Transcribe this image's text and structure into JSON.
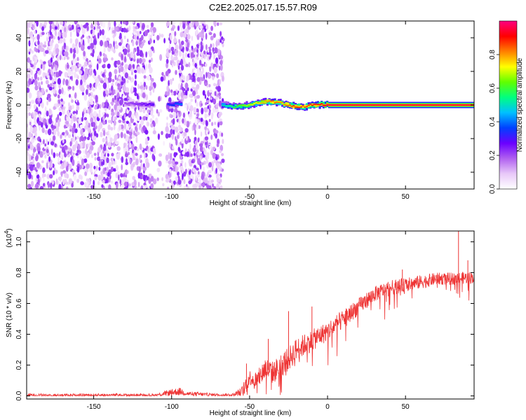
{
  "title": "C2E2.2025.017.15.57.R09",
  "chart_data": [
    {
      "type": "heatmap",
      "xlabel": "Height of straight line (km)",
      "ylabel": "Frequency (Hz)",
      "xlim": [
        -193,
        94
      ],
      "ylim": [
        -50,
        50
      ],
      "xticks": [
        -150,
        -100,
        -50,
        0,
        50
      ],
      "yticks": [
        -40,
        -20,
        0,
        20,
        40
      ],
      "colorbar": {
        "label": "Normalized spectral amplitude",
        "range": [
          0.0,
          1.0
        ],
        "ticks": [
          0.0,
          0.2,
          0.4,
          0.6,
          0.8
        ],
        "colors": [
          "#ffffff",
          "#e8c8f8",
          "#b060f0",
          "#6a00ff",
          "#0040ff",
          "#00c0ff",
          "#00ff80",
          "#60ff00",
          "#ffff00",
          "#ff8000",
          "#ff0000",
          "#ff0080"
        ]
      },
      "noise_region": {
        "x": [
          -193,
          -67
        ],
        "y": [
          -50,
          50
        ],
        "amplitude": [
          0.05,
          0.25
        ]
      },
      "gap_region": {
        "x": [
          -111,
          -103
        ]
      },
      "signal_track": {
        "x": [
          -130,
          -110,
          -100,
          -95,
          -67,
          -60,
          -50,
          -45,
          -40,
          -35,
          -30,
          -25,
          -20,
          -15,
          -10,
          -5,
          0,
          20,
          40,
          60,
          80,
          94
        ],
        "freq": [
          1,
          0,
          0,
          1,
          0,
          -1,
          0,
          1,
          2,
          2,
          1,
          0,
          -1,
          -1,
          0,
          0,
          0,
          0,
          0,
          0,
          0,
          0
        ],
        "amplitude": [
          0.2,
          0.3,
          0.35,
          0.4,
          0.5,
          0.6,
          0.7,
          0.75,
          0.8,
          0.85,
          0.8,
          0.85,
          0.9,
          0.85,
          0.9,
          0.9,
          0.95,
          0.95,
          0.95,
          0.95,
          0.95,
          0.95
        ]
      }
    },
    {
      "type": "line",
      "xlabel": "Height of straight line (km)",
      "ylabel": "SNR (10 * v/v)",
      "y_multiplier": "(x10",
      "y_multiplier_exp": "4",
      "y_multiplier_close": ")",
      "xlim": [
        -193,
        94
      ],
      "ylim": [
        -0.02,
        1.07
      ],
      "xticks": [
        -150,
        -100,
        -50,
        0,
        50
      ],
      "yticks": [
        0.0,
        0.2,
        0.4,
        0.6,
        0.8,
        1.0
      ],
      "color": "#ee3333",
      "envelope": {
        "x": [
          -193,
          -110,
          -102,
          -95,
          -90,
          -70,
          -60,
          -55,
          -52,
          -50,
          -45,
          -40,
          -35,
          -30,
          -25,
          -20,
          -10,
          0,
          10,
          20,
          30,
          40,
          50,
          60,
          70,
          80,
          94
        ],
        "base": [
          0.005,
          0.005,
          0.02,
          0.03,
          0.015,
          0.005,
          0.008,
          0.03,
          0.08,
          0.12,
          0.1,
          0.18,
          0.15,
          0.2,
          0.24,
          0.3,
          0.36,
          0.42,
          0.5,
          0.58,
          0.66,
          0.7,
          0.72,
          0.74,
          0.76,
          0.76,
          0.77
        ],
        "spread": [
          0.02,
          0.02,
          0.04,
          0.05,
          0.03,
          0.02,
          0.02,
          0.06,
          0.12,
          0.1,
          0.12,
          0.15,
          0.15,
          0.15,
          0.16,
          0.15,
          0.14,
          0.13,
          0.12,
          0.11,
          0.1,
          0.1,
          0.09,
          0.09,
          0.08,
          0.08,
          0.08
        ]
      },
      "spikes": [
        {
          "x": -52,
          "y": 0.21
        },
        {
          "x": -38,
          "y": 0.37
        },
        {
          "x": -25,
          "y": 0.55
        },
        {
          "x": -10,
          "y": 0.58
        },
        {
          "x": 48,
          "y": 0.82
        },
        {
          "x": 84,
          "y": 1.07
        },
        {
          "x": 90,
          "y": 0.88
        }
      ]
    }
  ]
}
